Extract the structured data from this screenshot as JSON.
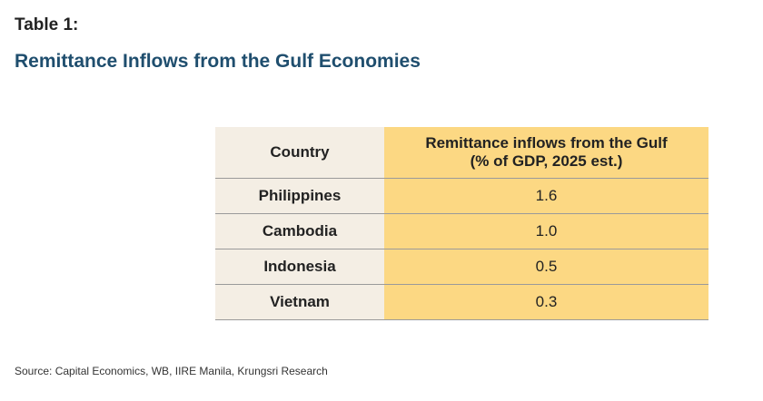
{
  "header": {
    "label": "Table 1:",
    "title": "Remittance Inflows from the Gulf Economies"
  },
  "table": {
    "column_country": "Country",
    "column_value_line1": "Remittance inflows from the Gulf",
    "column_value_line2": "(% of GDP, 2025 est.)",
    "rows": [
      {
        "country": "Philippines",
        "value": "1.6"
      },
      {
        "country": "Cambodia",
        "value": "1.0"
      },
      {
        "country": "Indonesia",
        "value": "0.5"
      },
      {
        "country": "Vietnam",
        "value": "0.3"
      }
    ]
  },
  "footer": {
    "source": "Source: Capital Economics, WB, IIRE Manila, Krungsri Research"
  },
  "colors": {
    "title": "#1f4e6e",
    "country_column_bg": "#f4eee4",
    "value_column_bg": "#fcd883",
    "rule": "#9a9a9a"
  }
}
